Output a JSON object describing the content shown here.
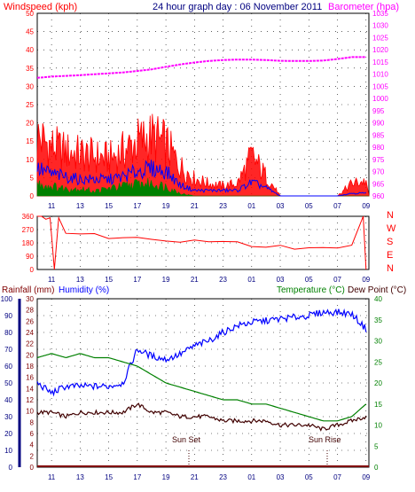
{
  "header": {
    "left_title": "Windspeed (kph)",
    "center_title": "24 hour graph day : 06 November 2011",
    "right_title": "Barometer (hpa)"
  },
  "colors": {
    "wind": "#ff0000",
    "gust_blue": "#0000ff",
    "wind_green": "#008000",
    "barometer": "#ff00ff",
    "rain": "#800000",
    "humidity": "#0000ff",
    "temperature": "#008000",
    "dewpoint": "#400000",
    "axis_left": "#ff0000",
    "axis_right": "#ff00ff",
    "axis_rain": "#000080",
    "axis_temp": "#008000",
    "grid": "#000000"
  },
  "x_ticks": [
    "11",
    "13",
    "15",
    "17",
    "19",
    "21",
    "23",
    "01",
    "03",
    "05",
    "07",
    "09"
  ],
  "panel2_ticks": [
    "11",
    "13",
    "15",
    "17",
    "19",
    "21",
    "23",
    "01",
    "03",
    "05",
    "07",
    "09"
  ],
  "chart_data": [
    {
      "type": "line",
      "title": "24 hour graph day : 06 November 2011",
      "ylabel": "Windspeed (kph)",
      "y2label": "Barometer (hpa)",
      "ylim": [
        0,
        50
      ],
      "y2lim": [
        960,
        1035
      ],
      "yticks": [
        "0",
        "5",
        "10",
        "15",
        "20",
        "25",
        "30",
        "35",
        "40",
        "45",
        "50"
      ],
      "y2ticks": [
        "980",
        "985",
        "990",
        "995",
        "1000",
        "1005",
        "1010",
        "1015",
        "1020",
        "1025",
        "1030",
        "1035"
      ],
      "y2ticks_extra": [
        "960",
        "965",
        "970",
        "975"
      ],
      "x": [
        10,
        11,
        12,
        13,
        14,
        15,
        16,
        17,
        18,
        19,
        20,
        21,
        22,
        23,
        24,
        25,
        26,
        27,
        28,
        29,
        30,
        31,
        32,
        33
      ],
      "series": [
        {
          "name": "Barometer",
          "values": [
            1008.5,
            1009,
            1009.3,
            1009.6,
            1010,
            1010.3,
            1010.7,
            1011.3,
            1012,
            1013,
            1014,
            1014.8,
            1015.4,
            1015.8,
            1016,
            1016,
            1015.8,
            1015.5,
            1015.4,
            1015.4,
            1015.6,
            1016.2,
            1017,
            1017
          ]
        },
        {
          "name": "Gust",
          "values": [
            24,
            20,
            18,
            17,
            16,
            15,
            18,
            22,
            24,
            21,
            12,
            7,
            5,
            4,
            5,
            16,
            8,
            0,
            0,
            0,
            0,
            0,
            5,
            6
          ]
        },
        {
          "name": "Average",
          "values": [
            10,
            8,
            7,
            6,
            6,
            6,
            7,
            9,
            10,
            9,
            4,
            2,
            2,
            2,
            2,
            5,
            3,
            0,
            0,
            0,
            0,
            0,
            1,
            1
          ]
        },
        {
          "name": "Low",
          "values": [
            5,
            4,
            3,
            3,
            2,
            3,
            4,
            5,
            5,
            4,
            1,
            0,
            0,
            0,
            0,
            0,
            0,
            0,
            0,
            0,
            0,
            0,
            0,
            0
          ]
        }
      ]
    },
    {
      "type": "line",
      "ylabel_ticks": [
        "0",
        "90",
        "180",
        "270",
        "360"
      ],
      "compass": [
        "N",
        "W",
        "S",
        "E",
        "N"
      ],
      "ylim": [
        0,
        360
      ],
      "x": [
        10,
        10.3,
        10.6,
        10.9,
        11.2,
        11.5,
        12,
        13,
        14,
        15,
        16,
        17,
        18,
        19,
        20,
        21,
        22,
        23,
        24,
        25,
        26,
        27,
        28,
        29,
        30,
        31,
        32,
        32.8,
        33
      ],
      "series": [
        {
          "name": "Wind Direction",
          "values": [
            360,
            360,
            340,
            350,
            0,
            350,
            230,
            230,
            230,
            220,
            220,
            220,
            200,
            200,
            180,
            190,
            190,
            190,
            200,
            160,
            150,
            150,
            150,
            150,
            150,
            150,
            150,
            360,
            0
          ]
        }
      ]
    },
    {
      "type": "line",
      "ylabel": "Rainfall (mm) / Humidity (%)",
      "y2label": "Temperature (°C) / Dew Point (°C)",
      "rain_label": "Rainfall (mm)",
      "humidity_label": "Humidity (%)",
      "temp_label": "Temperature (°C)",
      "dew_label": "Dew Point (°C)",
      "humidity_ticks": [
        "0",
        "10",
        "20",
        "30",
        "40",
        "50",
        "60",
        "70",
        "80",
        "90",
        "100"
      ],
      "rain_ticks": [
        "0",
        "2",
        "4",
        "6",
        "8",
        "10",
        "12",
        "14",
        "16",
        "18",
        "20",
        "22",
        "24",
        "26",
        "28",
        "30"
      ],
      "temp_ticks": [
        "0",
        "5",
        "10",
        "15",
        "20",
        "25",
        "30",
        "35",
        "40"
      ],
      "annotations": [
        "Sun Set",
        "Sun Rise"
      ],
      "x": [
        10,
        11,
        12,
        13,
        14,
        15,
        16,
        17,
        18,
        19,
        20,
        21,
        22,
        23,
        24,
        25,
        26,
        27,
        28,
        29,
        30,
        31,
        32,
        33
      ],
      "series": [
        {
          "name": "Humidity",
          "values": [
            50,
            44,
            48,
            48,
            48,
            48,
            50,
            70,
            66,
            64,
            67,
            72,
            75,
            80,
            84,
            86,
            87,
            88,
            89,
            90,
            92,
            92,
            91,
            82
          ]
        },
        {
          "name": "Temperature",
          "values": [
            26,
            27,
            26,
            27,
            26,
            26,
            25,
            24,
            22,
            20,
            19,
            18,
            17,
            16,
            16,
            15,
            15,
            14,
            13,
            12,
            11,
            11,
            12,
            15
          ]
        },
        {
          "name": "Dew Point",
          "values": [
            13,
            13,
            12,
            13,
            13,
            13,
            13,
            15,
            13,
            13,
            12,
            12,
            12,
            11,
            11,
            11,
            11,
            10,
            10,
            10,
            9,
            10,
            11,
            12
          ]
        },
        {
          "name": "Rainfall",
          "values": [
            0,
            0,
            0,
            0,
            0,
            0,
            0,
            0,
            0,
            0,
            0,
            0,
            0,
            0,
            0,
            0,
            0,
            0,
            0,
            0,
            0,
            0,
            0,
            0
          ]
        }
      ]
    }
  ]
}
